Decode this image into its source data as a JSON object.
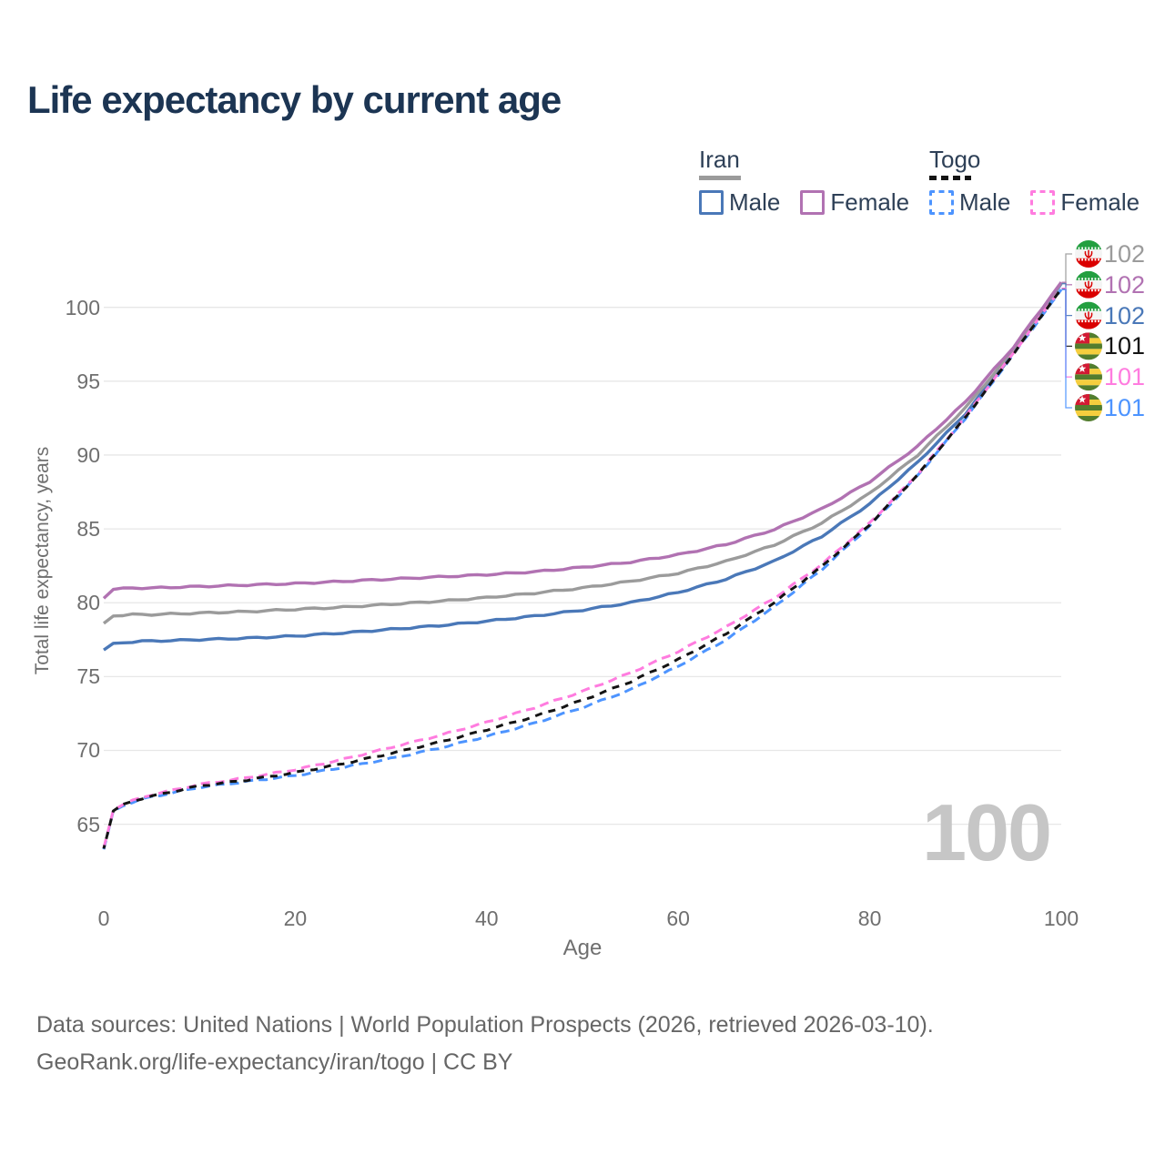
{
  "title": "Life expectancy by current age",
  "legend": {
    "groups": [
      {
        "name": "Iran",
        "line_style": "solid",
        "items": [
          {
            "label": "Male"
          },
          {
            "label": "Female"
          }
        ]
      },
      {
        "name": "Togo",
        "line_style": "dashed",
        "items": [
          {
            "label": "Male"
          },
          {
            "label": "Female"
          }
        ]
      }
    ]
  },
  "colors": {
    "iran_male": "#4a78b8",
    "iran_female": "#b172b2",
    "iran_avg": "#9b9b9b",
    "togo_male": "#4d94ff",
    "togo_female": "#ff7cdf",
    "togo_avg": "#141414",
    "grid": "#e7e7e7",
    "axis_text": "#6f6f6f",
    "heading_text": "#1c3553",
    "watermark_text": "#c6c6c6"
  },
  "watermark": "100",
  "chart_data": {
    "type": "line",
    "title": "Life expectancy by current age",
    "xlabel": "Age",
    "ylabel": "Total life expectancy, years",
    "xlim": [
      0,
      100
    ],
    "ylim": [
      62,
      103
    ],
    "xticks": [
      0,
      20,
      40,
      60,
      80,
      100
    ],
    "yticks": [
      65,
      70,
      75,
      80,
      85,
      90,
      95,
      100
    ],
    "grid": "horizontal-only",
    "legend_position": "top-right",
    "x": [
      0,
      1,
      2,
      3,
      4,
      5,
      10,
      15,
      20,
      25,
      30,
      35,
      40,
      45,
      50,
      55,
      60,
      65,
      70,
      75,
      80,
      85,
      90,
      95,
      100
    ],
    "series": [
      {
        "name": "Iran Male",
        "country": "Iran",
        "sex": "Male",
        "dash": "solid",
        "color_key": "iran_male",
        "values": [
          76.8,
          77.25,
          77.3,
          77.35,
          77.4,
          77.4,
          77.5,
          77.6,
          77.75,
          77.95,
          78.2,
          78.45,
          78.75,
          79.1,
          79.5,
          80.0,
          80.7,
          81.6,
          82.8,
          84.5,
          86.7,
          89.5,
          92.8,
          96.9,
          101.6
        ]
      },
      {
        "name": "Iran Average",
        "country": "Iran",
        "sex": "Both",
        "dash": "solid",
        "color_key": "iran_avg",
        "values": [
          78.6,
          79.1,
          79.15,
          79.2,
          79.2,
          79.2,
          79.3,
          79.4,
          79.55,
          79.7,
          79.9,
          80.1,
          80.35,
          80.65,
          81.0,
          81.45,
          82.0,
          82.8,
          83.9,
          85.4,
          87.4,
          90.0,
          93.2,
          97.1,
          101.65
        ]
      },
      {
        "name": "Iran Female",
        "country": "Iran",
        "sex": "Female",
        "dash": "solid",
        "color_key": "iran_female",
        "values": [
          80.3,
          80.9,
          80.95,
          81.0,
          81.0,
          81.0,
          81.1,
          81.2,
          81.3,
          81.45,
          81.6,
          81.75,
          81.9,
          82.1,
          82.4,
          82.75,
          83.25,
          83.95,
          84.95,
          86.35,
          88.2,
          90.6,
          93.6,
          97.3,
          101.7
        ]
      },
      {
        "name": "Togo Male",
        "country": "Togo",
        "sex": "Male",
        "dash": "dashed",
        "color_key": "togo_male",
        "values": [
          63.3,
          65.9,
          66.25,
          66.5,
          66.7,
          66.85,
          67.5,
          67.9,
          68.3,
          68.85,
          69.45,
          70.15,
          70.95,
          71.85,
          72.9,
          74.1,
          75.7,
          77.5,
          79.7,
          82.25,
          85.2,
          88.6,
          92.5,
          96.8,
          101.2
        ]
      },
      {
        "name": "Togo Female",
        "country": "Togo",
        "sex": "Female",
        "dash": "dashed",
        "color_key": "togo_female",
        "values": [
          63.4,
          65.95,
          66.35,
          66.6,
          66.8,
          67.0,
          67.7,
          68.15,
          68.7,
          69.4,
          70.2,
          71.0,
          71.9,
          72.9,
          74.0,
          75.25,
          76.7,
          78.35,
          80.3,
          82.6,
          85.4,
          88.7,
          92.6,
          96.9,
          101.3
        ]
      },
      {
        "name": "Togo Average",
        "country": "Togo",
        "sex": "Both",
        "dash": "dashed",
        "color_key": "togo_avg",
        "values": [
          63.35,
          65.9,
          66.3,
          66.55,
          66.75,
          66.9,
          67.6,
          68.0,
          68.5,
          69.1,
          69.8,
          70.55,
          71.4,
          72.3,
          73.4,
          74.65,
          76.15,
          77.9,
          80.0,
          82.45,
          85.3,
          88.65,
          92.55,
          96.85,
          101.25
        ]
      }
    ]
  },
  "endpoint_labels": [
    {
      "series": "Iran Average",
      "label": "102",
      "color_key": "iran_avg",
      "flag": "iran-flag-icon"
    },
    {
      "series": "Iran Female",
      "label": "102",
      "color_key": "iran_female",
      "flag": "iran-flag-icon"
    },
    {
      "series": "Iran Male",
      "label": "102",
      "color_key": "iran_male",
      "flag": "iran-flag-icon"
    },
    {
      "series": "Togo Average",
      "label": "101",
      "color_key": "togo_avg",
      "flag": "togo-flag-icon"
    },
    {
      "series": "Togo Female",
      "label": "101",
      "color_key": "togo_female",
      "flag": "togo-flag-icon"
    },
    {
      "series": "Togo Male",
      "label": "101",
      "color_key": "togo_male",
      "flag": "togo-flag-icon"
    }
  ],
  "footer": {
    "line1": "Data sources: United Nations | World Population Prospects (2026, retrieved 2026-03-10).",
    "line2": "GeoRank.org/life-expectancy/iran/togo | CC BY"
  }
}
